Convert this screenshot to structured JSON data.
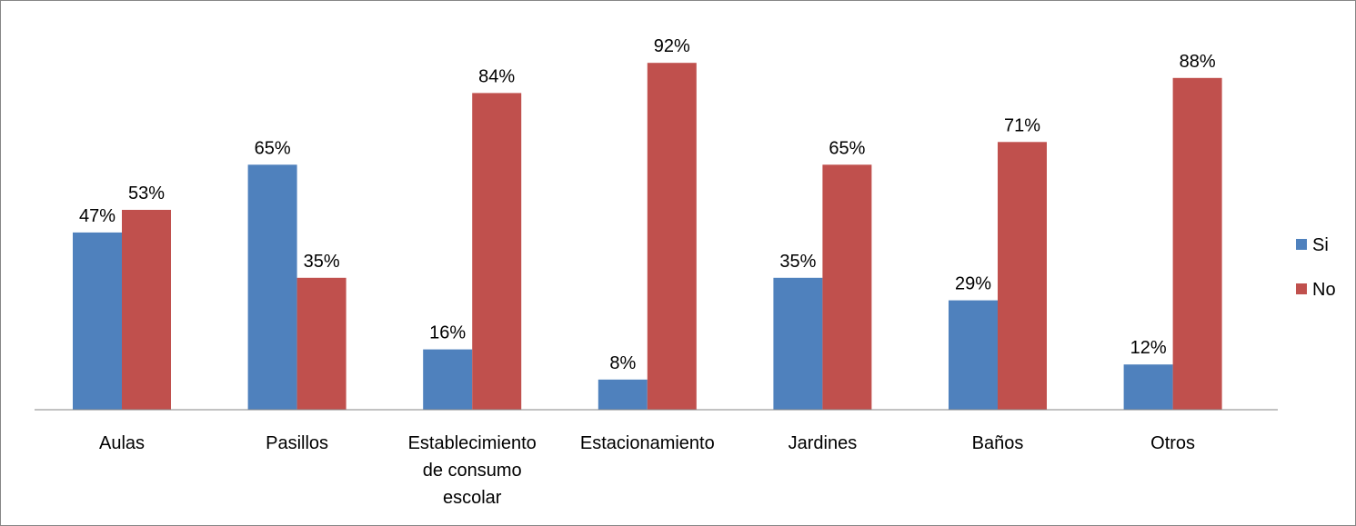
{
  "chart_data": {
    "type": "bar",
    "categories": [
      [
        "Aulas"
      ],
      [
        "Pasillos"
      ],
      [
        "Establecimiento",
        "de consumo",
        "escolar"
      ],
      [
        "Estacionamiento"
      ],
      [
        "Jardines"
      ],
      [
        "Baños"
      ],
      [
        "Otros"
      ]
    ],
    "series": [
      {
        "name": "Si",
        "color": "#4f81bd",
        "values": [
          47,
          65,
          16,
          8,
          35,
          29,
          12
        ],
        "labels": [
          "47%",
          "65%",
          "16%",
          "8%",
          "35%",
          "29%",
          "12%"
        ]
      },
      {
        "name": "No",
        "color": "#c0504d",
        "values": [
          53,
          35,
          84,
          92,
          65,
          71,
          88
        ],
        "labels": [
          "53%",
          "35%",
          "84%",
          "92%",
          "65%",
          "71%",
          "88%"
        ]
      }
    ],
    "ylim": [
      0,
      100
    ],
    "grid": false,
    "legend_position": "right",
    "axis_color": "#868686"
  }
}
